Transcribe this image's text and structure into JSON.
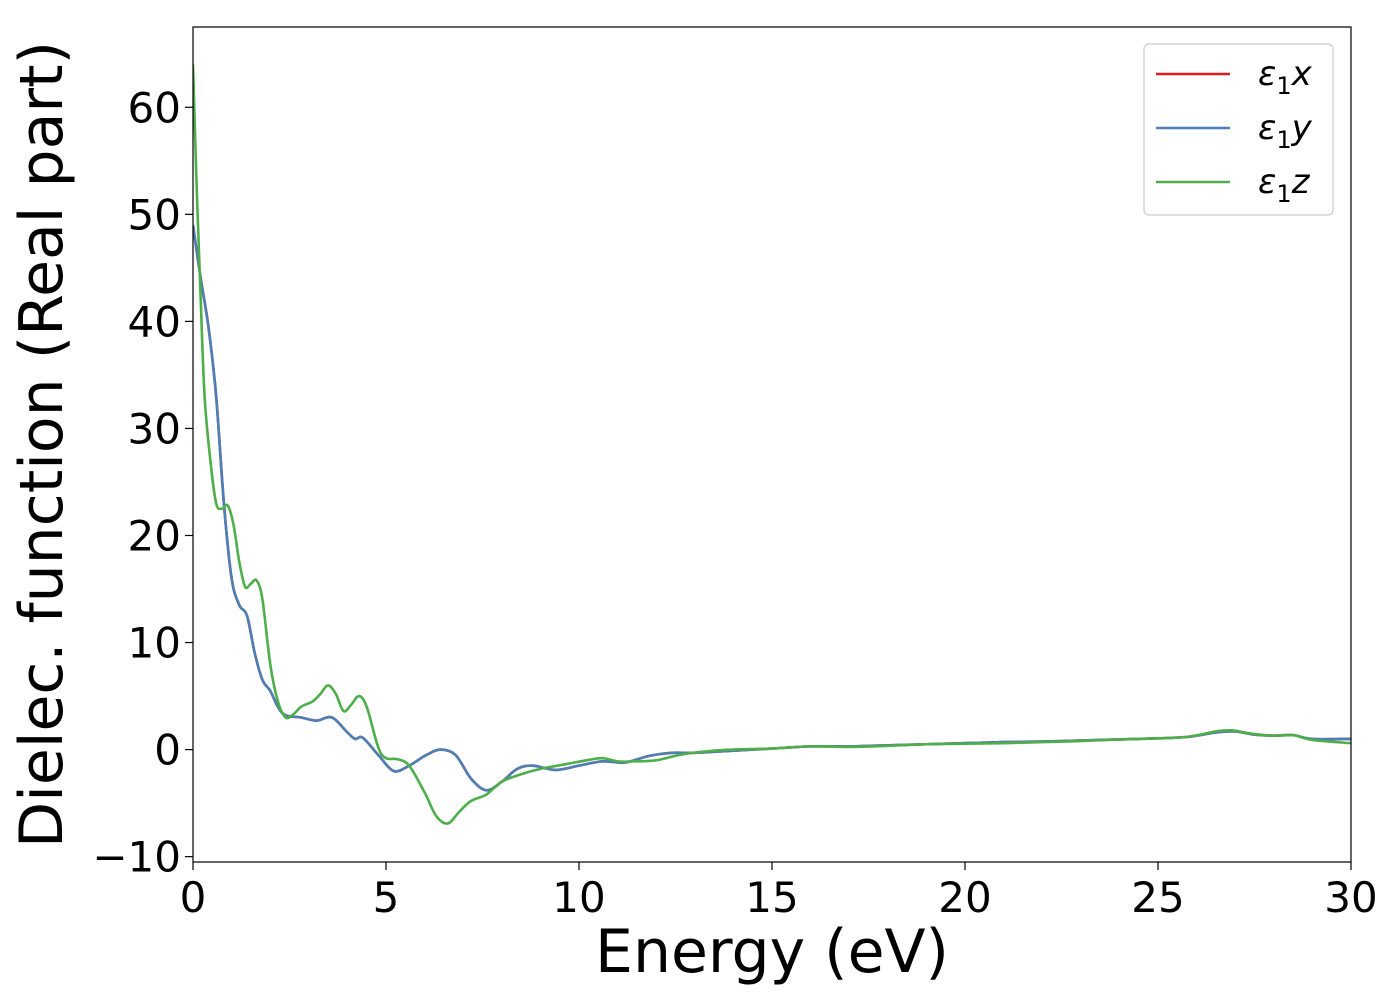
{
  "chart_data": {
    "type": "line",
    "xlabel": "Energy (eV)",
    "ylabel": "Dielec. function (Real part)",
    "xlim": [
      0,
      30
    ],
    "ylim": [
      -10.5,
      67.5
    ],
    "x_ticks": [
      0,
      5,
      10,
      15,
      20,
      25,
      30
    ],
    "x_tick_labels": [
      "0",
      "5",
      "10",
      "15",
      "20",
      "25",
      "30"
    ],
    "y_ticks": [
      -10,
      0,
      10,
      20,
      30,
      40,
      50,
      60
    ],
    "y_tick_labels": [
      "−10",
      "0",
      "10",
      "20",
      "30",
      "40",
      "50",
      "60"
    ],
    "grid": false,
    "legend_position": "top-right",
    "series": [
      {
        "name": "ε₁x",
        "legend_base": "ε",
        "legend_sub": "1",
        "legend_var": "x",
        "color": "#e41a1c",
        "points": [
          [
            0,
            49
          ],
          [
            0.2,
            44
          ],
          [
            0.4,
            39.5
          ],
          [
            0.6,
            33
          ],
          [
            0.8,
            23
          ],
          [
            1.0,
            16
          ],
          [
            1.2,
            13.5
          ],
          [
            1.4,
            12.5
          ],
          [
            1.6,
            9
          ],
          [
            1.8,
            6.5
          ],
          [
            2.0,
            5.5
          ],
          [
            2.2,
            4
          ],
          [
            2.4,
            3.2
          ],
          [
            2.8,
            3.0
          ],
          [
            3.2,
            2.7
          ],
          [
            3.6,
            3.0
          ],
          [
            4.0,
            1.6
          ],
          [
            4.2,
            1.0
          ],
          [
            4.4,
            1.1
          ],
          [
            4.8,
            -0.5
          ],
          [
            5.2,
            -2.0
          ],
          [
            5.6,
            -1.5
          ],
          [
            6.0,
            -0.6
          ],
          [
            6.4,
            0.0
          ],
          [
            6.8,
            -0.5
          ],
          [
            7.2,
            -2.7
          ],
          [
            7.6,
            -3.8
          ],
          [
            8.0,
            -3.0
          ],
          [
            8.4,
            -1.8
          ],
          [
            8.8,
            -1.5
          ],
          [
            9.4,
            -1.9
          ],
          [
            10.0,
            -1.5
          ],
          [
            10.6,
            -1.1
          ],
          [
            11.2,
            -1.2
          ],
          [
            11.8,
            -0.6
          ],
          [
            12.4,
            -0.3
          ],
          [
            13.0,
            -0.3
          ],
          [
            14.0,
            -0.1
          ],
          [
            15.0,
            0.1
          ],
          [
            16.0,
            0.3
          ],
          [
            17.0,
            0.3
          ],
          [
            18.0,
            0.4
          ],
          [
            19.0,
            0.5
          ],
          [
            20.0,
            0.6
          ],
          [
            21.0,
            0.7
          ],
          [
            22.0,
            0.75
          ],
          [
            23.0,
            0.85
          ],
          [
            24.0,
            0.95
          ],
          [
            25.0,
            1.05
          ],
          [
            25.8,
            1.2
          ],
          [
            26.5,
            1.6
          ],
          [
            27.0,
            1.7
          ],
          [
            27.5,
            1.4
          ],
          [
            28.0,
            1.3
          ],
          [
            28.5,
            1.35
          ],
          [
            29.0,
            1.0
          ],
          [
            30.0,
            1.0
          ]
        ]
      },
      {
        "name": "ε₁y",
        "legend_base": "ε",
        "legend_sub": "1",
        "legend_var": "y",
        "color": "#4a7fb8",
        "points": [
          [
            0,
            49
          ],
          [
            0.2,
            44
          ],
          [
            0.4,
            39.5
          ],
          [
            0.6,
            33
          ],
          [
            0.8,
            23
          ],
          [
            1.0,
            16
          ],
          [
            1.2,
            13.5
          ],
          [
            1.4,
            12.5
          ],
          [
            1.6,
            9
          ],
          [
            1.8,
            6.5
          ],
          [
            2.0,
            5.5
          ],
          [
            2.2,
            4
          ],
          [
            2.4,
            3.2
          ],
          [
            2.8,
            3.0
          ],
          [
            3.2,
            2.7
          ],
          [
            3.6,
            3.0
          ],
          [
            4.0,
            1.6
          ],
          [
            4.2,
            1.0
          ],
          [
            4.4,
            1.1
          ],
          [
            4.8,
            -0.5
          ],
          [
            5.2,
            -2.0
          ],
          [
            5.6,
            -1.5
          ],
          [
            6.0,
            -0.6
          ],
          [
            6.4,
            0.0
          ],
          [
            6.8,
            -0.5
          ],
          [
            7.2,
            -2.7
          ],
          [
            7.6,
            -3.8
          ],
          [
            8.0,
            -3.0
          ],
          [
            8.4,
            -1.8
          ],
          [
            8.8,
            -1.5
          ],
          [
            9.4,
            -1.9
          ],
          [
            10.0,
            -1.5
          ],
          [
            10.6,
            -1.1
          ],
          [
            11.2,
            -1.2
          ],
          [
            11.8,
            -0.6
          ],
          [
            12.4,
            -0.3
          ],
          [
            13.0,
            -0.3
          ],
          [
            14.0,
            -0.1
          ],
          [
            15.0,
            0.1
          ],
          [
            16.0,
            0.3
          ],
          [
            17.0,
            0.3
          ],
          [
            18.0,
            0.4
          ],
          [
            19.0,
            0.5
          ],
          [
            20.0,
            0.6
          ],
          [
            21.0,
            0.7
          ],
          [
            22.0,
            0.75
          ],
          [
            23.0,
            0.85
          ],
          [
            24.0,
            0.95
          ],
          [
            25.0,
            1.05
          ],
          [
            25.8,
            1.2
          ],
          [
            26.5,
            1.6
          ],
          [
            27.0,
            1.7
          ],
          [
            27.5,
            1.4
          ],
          [
            28.0,
            1.3
          ],
          [
            28.5,
            1.35
          ],
          [
            29.0,
            1.0
          ],
          [
            30.0,
            1.0
          ]
        ]
      },
      {
        "name": "ε₁z",
        "legend_base": "ε",
        "legend_sub": "1",
        "legend_var": "z",
        "color": "#4daf4a",
        "points": [
          [
            0,
            64
          ],
          [
            0.1,
            52
          ],
          [
            0.2,
            42
          ],
          [
            0.3,
            33
          ],
          [
            0.45,
            27
          ],
          [
            0.6,
            23
          ],
          [
            0.75,
            22.5
          ],
          [
            0.9,
            22.8
          ],
          [
            1.05,
            21
          ],
          [
            1.2,
            17.5
          ],
          [
            1.35,
            15.2
          ],
          [
            1.5,
            15.5
          ],
          [
            1.65,
            15.8
          ],
          [
            1.8,
            14
          ],
          [
            2.0,
            8
          ],
          [
            2.2,
            4.5
          ],
          [
            2.4,
            3.0
          ],
          [
            2.6,
            3.3
          ],
          [
            2.8,
            4.0
          ],
          [
            3.1,
            4.5
          ],
          [
            3.3,
            5.2
          ],
          [
            3.5,
            6.0
          ],
          [
            3.7,
            5.2
          ],
          [
            3.9,
            3.6
          ],
          [
            4.1,
            4.2
          ],
          [
            4.3,
            5.0
          ],
          [
            4.5,
            4.0
          ],
          [
            4.8,
            0.2
          ],
          [
            5.0,
            -0.8
          ],
          [
            5.3,
            -0.9
          ],
          [
            5.6,
            -1.5
          ],
          [
            6.0,
            -4.0
          ],
          [
            6.3,
            -6.2
          ],
          [
            6.6,
            -6.9
          ],
          [
            6.9,
            -5.8
          ],
          [
            7.2,
            -4.8
          ],
          [
            7.6,
            -4.2
          ],
          [
            8.0,
            -3.0
          ],
          [
            8.5,
            -2.3
          ],
          [
            9.0,
            -1.8
          ],
          [
            9.6,
            -1.4
          ],
          [
            10.2,
            -1.0
          ],
          [
            10.6,
            -0.8
          ],
          [
            11.0,
            -1.1
          ],
          [
            11.4,
            -1.1
          ],
          [
            12.0,
            -1.0
          ],
          [
            12.6,
            -0.5
          ],
          [
            13.2,
            -0.2
          ],
          [
            14.0,
            0.0
          ],
          [
            15.0,
            0.1
          ],
          [
            16.0,
            0.3
          ],
          [
            17.0,
            0.25
          ],
          [
            18.0,
            0.35
          ],
          [
            19.0,
            0.5
          ],
          [
            20.0,
            0.55
          ],
          [
            21.0,
            0.6
          ],
          [
            22.0,
            0.7
          ],
          [
            23.0,
            0.8
          ],
          [
            24.0,
            0.95
          ],
          [
            25.0,
            1.05
          ],
          [
            25.8,
            1.2
          ],
          [
            26.5,
            1.7
          ],
          [
            26.9,
            1.8
          ],
          [
            27.4,
            1.5
          ],
          [
            28.0,
            1.3
          ],
          [
            28.5,
            1.35
          ],
          [
            29.0,
            0.9
          ],
          [
            30.0,
            0.6
          ]
        ]
      }
    ]
  }
}
